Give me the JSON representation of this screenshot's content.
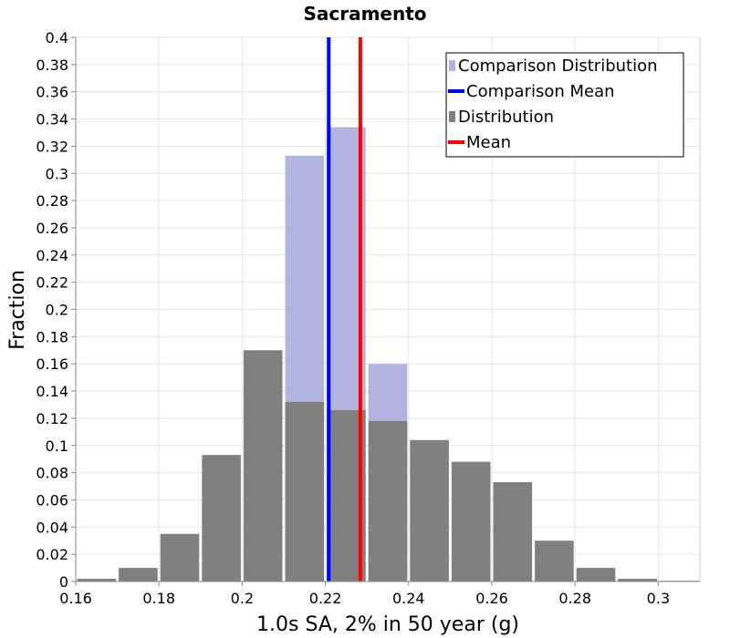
{
  "chart_data": {
    "type": "bar",
    "title": "Sacramento",
    "xlabel": "1.0s SA, 2% in 50 year (g)",
    "ylabel": "Fraction",
    "xlim": [
      0.16,
      0.31
    ],
    "ylim": [
      0,
      0.4
    ],
    "xticks": [
      "0.16",
      "0.18",
      "0.2",
      "0.22",
      "0.24",
      "0.26",
      "0.28",
      "0.3"
    ],
    "yticks": [
      "0",
      "0.02",
      "0.04",
      "0.06",
      "0.08",
      "0.1",
      "0.12",
      "0.14",
      "0.16",
      "0.18",
      "0.2",
      "0.22",
      "0.24",
      "0.26",
      "0.28",
      "0.3",
      "0.32",
      "0.34",
      "0.36",
      "0.38",
      "0.4"
    ],
    "bin_width": 0.01,
    "grid": true,
    "legend_position": "top-right",
    "series": [
      {
        "name": "Comparison Distribution",
        "kind": "bar",
        "color": "#b3b3e0",
        "bin_centers": [
          0.215,
          0.225,
          0.235
        ],
        "values": [
          0.313,
          0.334,
          0.16
        ]
      },
      {
        "name": "Comparison Mean",
        "kind": "vline",
        "color": "#0000ff",
        "x": 0.2208
      },
      {
        "name": "Distribution",
        "kind": "bar",
        "color": "#808080",
        "bin_centers": [
          0.165,
          0.175,
          0.185,
          0.195,
          0.205,
          0.215,
          0.225,
          0.235,
          0.245,
          0.255,
          0.265,
          0.275,
          0.285,
          0.295,
          0.305
        ],
        "values": [
          0.002,
          0.01,
          0.035,
          0.093,
          0.17,
          0.132,
          0.126,
          0.118,
          0.104,
          0.088,
          0.073,
          0.03,
          0.01,
          0.002,
          0.0005
        ]
      },
      {
        "name": "Mean",
        "kind": "vline",
        "color": "#ff0000",
        "x": 0.2284
      }
    ]
  }
}
